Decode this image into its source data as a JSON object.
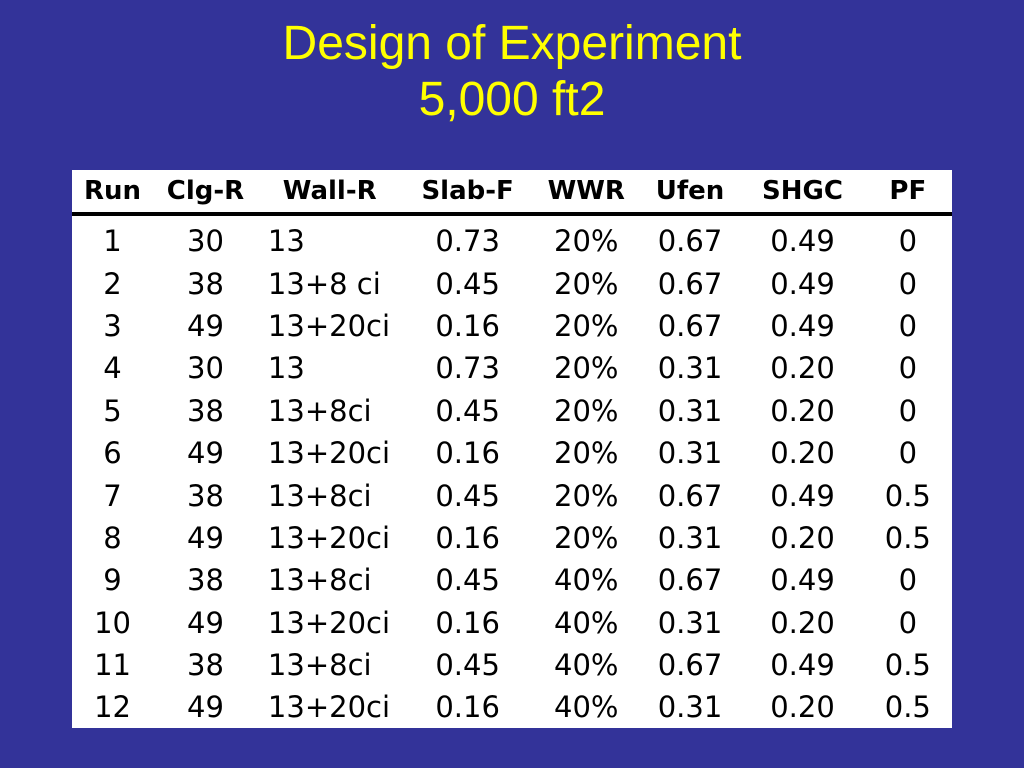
{
  "title": {
    "line1": "Design of Experiment",
    "line2": "5,000 ft2"
  },
  "colors": {
    "background": "#333399",
    "title": "#ffff00",
    "table_background": "#ffffff"
  },
  "table": {
    "columns": [
      "Run",
      "Clg-R",
      "Wall-R",
      "Slab-F",
      "WWR",
      "Ufen",
      "SHGC",
      "PF"
    ],
    "rows": [
      [
        "1",
        "30",
        "13",
        "0.73",
        "20%",
        "0.67",
        "0.49",
        "0"
      ],
      [
        "2",
        "38",
        "13+8 ci",
        "0.45",
        "20%",
        "0.67",
        "0.49",
        "0"
      ],
      [
        "3",
        "49",
        "13+20ci",
        "0.16",
        "20%",
        "0.67",
        "0.49",
        "0"
      ],
      [
        "4",
        "30",
        "13",
        "0.73",
        "20%",
        "0.31",
        "0.20",
        "0"
      ],
      [
        "5",
        "38",
        "13+8ci",
        "0.45",
        "20%",
        "0.31",
        "0.20",
        "0"
      ],
      [
        "6",
        "49",
        "13+20ci",
        "0.16",
        "20%",
        "0.31",
        "0.20",
        "0"
      ],
      [
        "7",
        "38",
        "13+8ci",
        "0.45",
        "20%",
        "0.67",
        "0.49",
        "0.5"
      ],
      [
        "8",
        "49",
        "13+20ci",
        "0.16",
        "20%",
        "0.31",
        "0.20",
        "0.5"
      ],
      [
        "9",
        "38",
        "13+8ci",
        "0.45",
        "40%",
        "0.67",
        "0.49",
        "0"
      ],
      [
        "10",
        "49",
        "13+20ci",
        "0.16",
        "40%",
        "0.31",
        "0.20",
        "0"
      ],
      [
        "11",
        "38",
        "13+8ci",
        "0.45",
        "40%",
        "0.67",
        "0.49",
        "0.5"
      ],
      [
        "12",
        "49",
        "13+20ci",
        "0.16",
        "40%",
        "0.31",
        "0.20",
        "0.5"
      ]
    ]
  }
}
